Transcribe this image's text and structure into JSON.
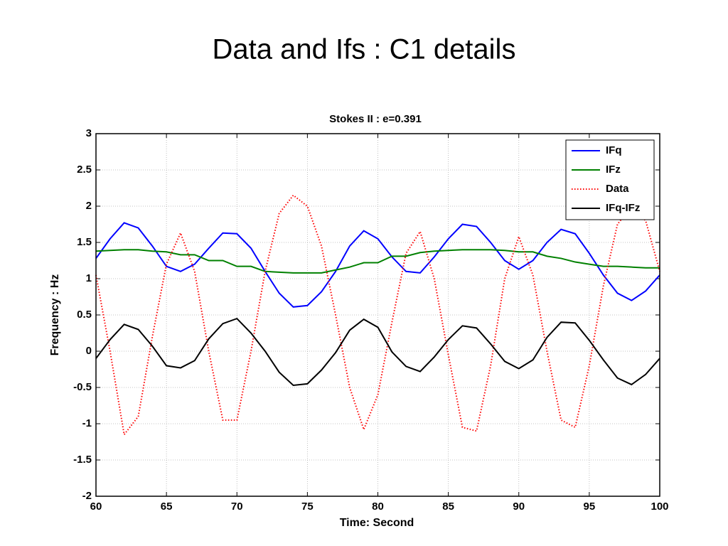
{
  "chart_data": {
    "type": "line",
    "title": "Data and Ifs : C1 details",
    "subtitle": "Stokes II : e=0.391",
    "xlabel": "Time: Second",
    "ylabel": "Frequency : Hz",
    "x": [
      60,
      61,
      62,
      63,
      64,
      65,
      66,
      67,
      68,
      69,
      70,
      71,
      72,
      73,
      74,
      75,
      76,
      77,
      78,
      79,
      80,
      81,
      82,
      83,
      84,
      85,
      86,
      87,
      88,
      89,
      90,
      91,
      92,
      93,
      94,
      95,
      96,
      97,
      98,
      99,
      100
    ],
    "series": [
      {
        "name": "IFq",
        "color": "#0000ff",
        "style": "solid",
        "values": [
          1.28,
          1.55,
          1.77,
          1.7,
          1.45,
          1.17,
          1.1,
          1.2,
          1.42,
          1.63,
          1.62,
          1.42,
          1.1,
          0.8,
          0.61,
          0.63,
          0.82,
          1.1,
          1.45,
          1.66,
          1.55,
          1.3,
          1.1,
          1.08,
          1.3,
          1.55,
          1.75,
          1.72,
          1.5,
          1.25,
          1.13,
          1.25,
          1.5,
          1.68,
          1.62,
          1.35,
          1.05,
          0.8,
          0.7,
          0.83,
          1.05
        ]
      },
      {
        "name": "IFz",
        "color": "#008000",
        "style": "solid",
        "values": [
          1.38,
          1.39,
          1.4,
          1.4,
          1.38,
          1.37,
          1.33,
          1.33,
          1.25,
          1.25,
          1.17,
          1.17,
          1.1,
          1.09,
          1.08,
          1.08,
          1.08,
          1.12,
          1.16,
          1.22,
          1.22,
          1.31,
          1.31,
          1.36,
          1.38,
          1.39,
          1.4,
          1.4,
          1.4,
          1.39,
          1.37,
          1.37,
          1.31,
          1.28,
          1.23,
          1.2,
          1.17,
          1.17,
          1.16,
          1.15,
          1.15
        ]
      },
      {
        "name": "Data",
        "color": "#ff0000",
        "style": "dotted",
        "values": [
          1.05,
          0.0,
          -1.15,
          -0.9,
          0.2,
          1.2,
          1.63,
          1.1,
          0.0,
          -0.95,
          -0.95,
          0.0,
          1.1,
          1.9,
          2.15,
          2.0,
          1.45,
          0.5,
          -0.5,
          -1.08,
          -0.6,
          0.4,
          1.35,
          1.65,
          1.0,
          -0.05,
          -1.05,
          -1.1,
          -0.2,
          1.0,
          1.58,
          1.05,
          0.0,
          -0.95,
          -1.05,
          -0.2,
          0.9,
          1.75,
          2.0,
          1.8,
          1.1
        ]
      },
      {
        "name": "IFq-IFz",
        "color": "#000000",
        "style": "solid",
        "values": [
          -0.1,
          0.16,
          0.37,
          0.3,
          0.07,
          -0.2,
          -0.23,
          -0.13,
          0.17,
          0.38,
          0.45,
          0.25,
          0.0,
          -0.29,
          -0.47,
          -0.45,
          -0.26,
          -0.02,
          0.29,
          0.44,
          0.33,
          -0.01,
          -0.21,
          -0.28,
          -0.08,
          0.16,
          0.35,
          0.32,
          0.1,
          -0.14,
          -0.24,
          -0.12,
          0.19,
          0.4,
          0.39,
          0.15,
          -0.12,
          -0.37,
          -0.46,
          -0.32,
          -0.1
        ]
      }
    ],
    "xlim": [
      60,
      100
    ],
    "xticks": [
      60,
      65,
      70,
      75,
      80,
      85,
      90,
      95,
      100
    ],
    "ylim": [
      -2,
      3
    ],
    "yticks": [
      -2,
      -1.5,
      -1,
      -0.5,
      0,
      0.5,
      1,
      1.5,
      2,
      2.5,
      3
    ],
    "grid": true,
    "legend": "top-right"
  }
}
